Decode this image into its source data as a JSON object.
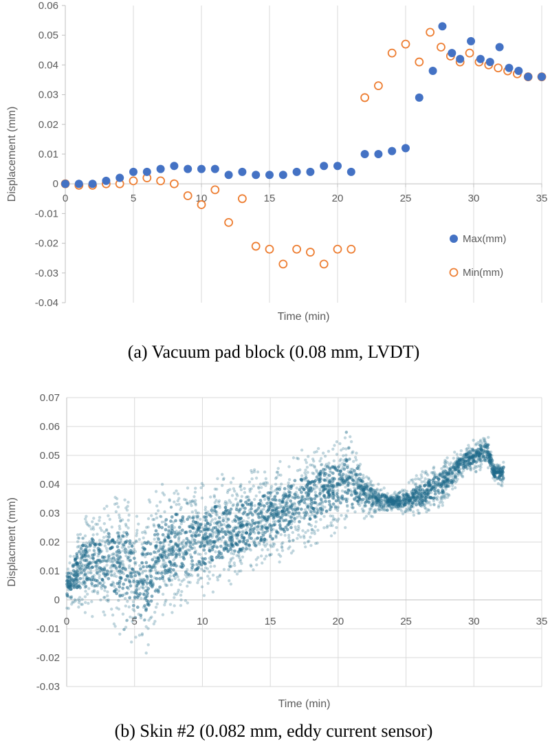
{
  "chart_data": [
    {
      "type": "scatter",
      "caption": "(a)  Vacuum pad block (0.08 mm, LVDT)",
      "xlabel": "Time (min)",
      "ylabel": "Displacement (mm)",
      "xlim": [
        0,
        35
      ],
      "ylim": [
        -0.04,
        0.06
      ],
      "x_ticks": [
        "0",
        "5",
        "10",
        "15",
        "20",
        "25",
        "30",
        "35"
      ],
      "y_ticks": [
        "-0.04",
        "-0.03",
        "-0.02",
        "-0.01",
        "0",
        "0.01",
        "0.02",
        "0.03",
        "0.04",
        "0.05",
        "0.06"
      ],
      "grid": "vertical",
      "legend": "bottom-right",
      "series": [
        {
          "name": "Max(mm)",
          "marker": "filled-circle",
          "color": "#4472C4",
          "points": [
            [
              0,
              0
            ],
            [
              1,
              0
            ],
            [
              2,
              0
            ],
            [
              3,
              0.001
            ],
            [
              4,
              0.002
            ],
            [
              5,
              0.004
            ],
            [
              6,
              0.004
            ],
            [
              7,
              0.005
            ],
            [
              8,
              0.006
            ],
            [
              9,
              0.005
            ],
            [
              10,
              0.005
            ],
            [
              11,
              0.005
            ],
            [
              12,
              0.003
            ],
            [
              13,
              0.004
            ],
            [
              14,
              0.003
            ],
            [
              15,
              0.003
            ],
            [
              16,
              0.003
            ],
            [
              17,
              0.004
            ],
            [
              18,
              0.004
            ],
            [
              19,
              0.006
            ],
            [
              20,
              0.006
            ],
            [
              21,
              0.004
            ],
            [
              22,
              0.01
            ],
            [
              23,
              0.01
            ],
            [
              24,
              0.011
            ],
            [
              25,
              0.012
            ],
            [
              26,
              0.029
            ],
            [
              27,
              0.038
            ],
            [
              27.7,
              0.053
            ],
            [
              28.4,
              0.044
            ],
            [
              29,
              0.042
            ],
            [
              29.8,
              0.048
            ],
            [
              30.5,
              0.042
            ],
            [
              31.2,
              0.041
            ],
            [
              31.9,
              0.046
            ],
            [
              32.6,
              0.039
            ],
            [
              33.3,
              0.038
            ],
            [
              34,
              0.036
            ],
            [
              35,
              0.036
            ]
          ]
        },
        {
          "name": "Min(mm)",
          "marker": "hollow-circle",
          "color": "#ED7D31",
          "points": [
            [
              0,
              0
            ],
            [
              1,
              -0.0005
            ],
            [
              2,
              -0.0005
            ],
            [
              3,
              0
            ],
            [
              4,
              0
            ],
            [
              5,
              0.001
            ],
            [
              6,
              0.002
            ],
            [
              7,
              0.001
            ],
            [
              8,
              0
            ],
            [
              9,
              -0.004
            ],
            [
              10,
              -0.007
            ],
            [
              11,
              -0.002
            ],
            [
              12,
              -0.013
            ],
            [
              13,
              -0.005
            ],
            [
              14,
              -0.021
            ],
            [
              15,
              -0.022
            ],
            [
              16,
              -0.027
            ],
            [
              17,
              -0.022
            ],
            [
              18,
              -0.023
            ],
            [
              19,
              -0.027
            ],
            [
              20,
              -0.022
            ],
            [
              21,
              -0.022
            ],
            [
              22,
              0.029
            ],
            [
              23,
              0.033
            ],
            [
              24,
              0.044
            ],
            [
              25,
              0.047
            ],
            [
              26,
              0.041
            ],
            [
              26.8,
              0.051
            ],
            [
              27.6,
              0.046
            ],
            [
              28.3,
              0.043
            ],
            [
              29,
              0.041
            ],
            [
              29.7,
              0.044
            ],
            [
              30.4,
              0.041
            ],
            [
              31.1,
              0.04
            ],
            [
              31.8,
              0.039
            ],
            [
              32.5,
              0.038
            ],
            [
              33.2,
              0.037
            ],
            [
              34,
              0.036
            ],
            [
              35,
              0.036
            ]
          ]
        }
      ]
    },
    {
      "type": "scatter",
      "caption": "(b)  Skin #2 (0.082 mm, eddy current sensor)",
      "xlabel": "Time (min)",
      "ylabel": "Displacment (mm)",
      "xlim": [
        0,
        35
      ],
      "ylim": [
        -0.03,
        0.07
      ],
      "x_ticks": [
        "0",
        "5",
        "10",
        "15",
        "20",
        "25",
        "30",
        "35"
      ],
      "y_ticks": [
        "-0.03",
        "-0.02",
        "-0.01",
        "0",
        "0.01",
        "0.02",
        "0.03",
        "0.04",
        "0.05",
        "0.06",
        "0.07"
      ],
      "grid": "both",
      "marker": "semi-transparent-dot",
      "color": "#1F6A8A",
      "points_note": "dense continuous sensor trace",
      "envelope": [
        [
          0,
          -0.003,
          0.012
        ],
        [
          1,
          -0.005,
          0.028
        ],
        [
          2,
          -0.006,
          0.032
        ],
        [
          3,
          -0.008,
          0.035
        ],
        [
          4,
          -0.013,
          0.038
        ],
        [
          4.5,
          -0.016,
          0.041
        ],
        [
          5,
          -0.022,
          0.03
        ],
        [
          6,
          -0.018,
          0.036
        ],
        [
          7,
          -0.01,
          0.042
        ],
        [
          8,
          -0.005,
          0.043
        ],
        [
          9,
          -0.003,
          0.04
        ],
        [
          10,
          0,
          0.041
        ],
        [
          11,
          0.003,
          0.045
        ],
        [
          12,
          0.004,
          0.043
        ],
        [
          13,
          0.006,
          0.046
        ],
        [
          14,
          0.008,
          0.045
        ],
        [
          15,
          0.01,
          0.048
        ],
        [
          16,
          0.013,
          0.049
        ],
        [
          17,
          0.016,
          0.053
        ],
        [
          18,
          0.018,
          0.052
        ],
        [
          19,
          0.021,
          0.055
        ],
        [
          20,
          0.023,
          0.057
        ],
        [
          21,
          0.026,
          0.059
        ],
        [
          22,
          0.028,
          0.045
        ],
        [
          23,
          0.029,
          0.04
        ],
        [
          24,
          0.031,
          0.037
        ],
        [
          25,
          0.029,
          0.04
        ],
        [
          26,
          0.028,
          0.044
        ],
        [
          27,
          0.031,
          0.046
        ],
        [
          28,
          0.033,
          0.05
        ],
        [
          29,
          0.042,
          0.052
        ],
        [
          30,
          0.044,
          0.056
        ],
        [
          31,
          0.045,
          0.058
        ],
        [
          31.5,
          0.04,
          0.048
        ],
        [
          32.2,
          0.038,
          0.05
        ]
      ]
    }
  ]
}
